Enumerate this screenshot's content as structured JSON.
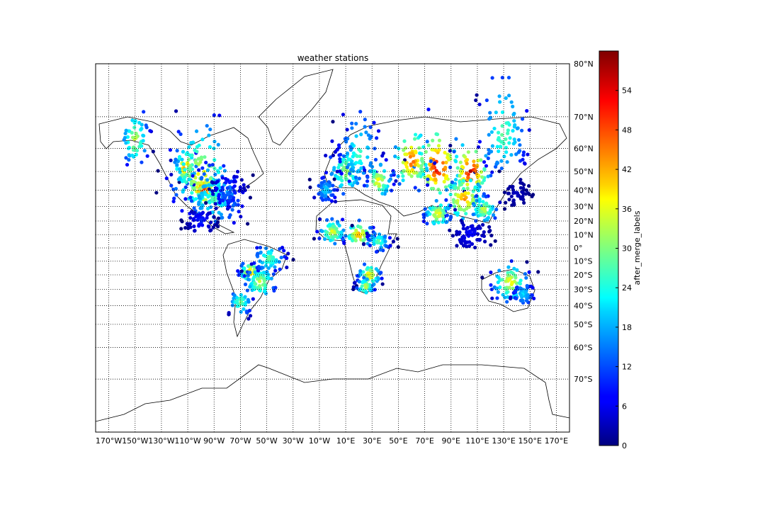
{
  "chart_data": {
    "type": "scatter",
    "title": "weather stations",
    "projection": "mercator",
    "xlim": [
      -180,
      180
    ],
    "ylim": [
      -80,
      80
    ],
    "grid": true,
    "parallel_labels": [
      "80°N",
      "70°N",
      "60°N",
      "50°N",
      "40°N",
      "30°N",
      "20°N",
      "10°N",
      "0°",
      "10°S",
      "20°S",
      "30°S",
      "40°S",
      "50°S",
      "60°S",
      "70°S"
    ],
    "parallel_values": [
      80,
      70,
      60,
      50,
      40,
      30,
      20,
      10,
      0,
      -10,
      -20,
      -30,
      -40,
      -50,
      -60,
      -70
    ],
    "meridian_labels": [
      "170°W",
      "150°W",
      "130°W",
      "110°W",
      "90°W",
      "70°W",
      "50°W",
      "30°W",
      "10°W",
      "10°E",
      "30°E",
      "50°E",
      "70°E",
      "90°E",
      "110°E",
      "130°E",
      "150°E",
      "170°E"
    ],
    "meridian_values": [
      -170,
      -150,
      -130,
      -110,
      -90,
      -70,
      -50,
      -30,
      -10,
      10,
      30,
      50,
      70,
      90,
      110,
      130,
      150,
      170
    ],
    "colorbar": {
      "label": "after_merge_labels",
      "range": [
        0,
        60
      ],
      "tick_labels": [
        "0",
        "6",
        "12",
        "18",
        "24",
        "30",
        "36",
        "42",
        "48",
        "54"
      ],
      "tick_values": [
        0,
        6,
        12,
        18,
        24,
        30,
        36,
        42,
        48,
        54
      ],
      "colormap": "jet"
    },
    "clusters": [
      {
        "lon": -98,
        "lat": 40,
        "value": 52,
        "spread": 7
      },
      {
        "lon": -112,
        "lat": 52,
        "value": 46,
        "spread": 5
      },
      {
        "lon": -100,
        "lat": 48,
        "value": 40,
        "spread": 13
      },
      {
        "lon": -90,
        "lat": 35,
        "value": 28,
        "spread": 12
      },
      {
        "lon": -80,
        "lat": 38,
        "value": 14,
        "spread": 7
      },
      {
        "lon": -150,
        "lat": 63,
        "value": 36,
        "spread": 6
      },
      {
        "lon": -100,
        "lat": 20,
        "value": 10,
        "spread": 6
      },
      {
        "lon": -62,
        "lat": -18,
        "value": 44,
        "spread": 5
      },
      {
        "lon": -55,
        "lat": -25,
        "value": 36,
        "spread": 7
      },
      {
        "lon": -48,
        "lat": -8,
        "value": 30,
        "spread": 7
      },
      {
        "lon": -70,
        "lat": -38,
        "value": 32,
        "spread": 5
      },
      {
        "lon": 10,
        "lat": 50,
        "value": 34,
        "spread": 8
      },
      {
        "lon": 20,
        "lat": 58,
        "value": 28,
        "spread": 9
      },
      {
        "lon": -5,
        "lat": 40,
        "value": 22,
        "spread": 5
      },
      {
        "lon": 35,
        "lat": 45,
        "value": 40,
        "spread": 6
      },
      {
        "lon": 80,
        "lat": 52,
        "value": 56,
        "spread": 10
      },
      {
        "lon": 60,
        "lat": 55,
        "value": 50,
        "spread": 8
      },
      {
        "lon": 105,
        "lat": 50,
        "value": 57,
        "spread": 8
      },
      {
        "lon": 100,
        "lat": 35,
        "value": 46,
        "spread": 9
      },
      {
        "lon": 80,
        "lat": 25,
        "value": 40,
        "spread": 6
      },
      {
        "lon": 115,
        "lat": 28,
        "value": 36,
        "spread": 6
      },
      {
        "lon": 130,
        "lat": 65,
        "value": 30,
        "spread": 10
      },
      {
        "lon": 20,
        "lat": 10,
        "value": 46,
        "spread": 6
      },
      {
        "lon": 0,
        "lat": 12,
        "value": 38,
        "spread": 6
      },
      {
        "lon": 35,
        "lat": 5,
        "value": 30,
        "spread": 5
      },
      {
        "lon": 28,
        "lat": -20,
        "value": 42,
        "spread": 5
      },
      {
        "lon": 25,
        "lat": -28,
        "value": 36,
        "spread": 4
      },
      {
        "lon": 135,
        "lat": -25,
        "value": 40,
        "spread": 8
      },
      {
        "lon": 145,
        "lat": -33,
        "value": 22,
        "spread": 5
      },
      {
        "lon": 105,
        "lat": 10,
        "value": 8,
        "spread": 8
      },
      {
        "lon": 140,
        "lat": 38,
        "value": 4,
        "spread": 5
      }
    ]
  }
}
